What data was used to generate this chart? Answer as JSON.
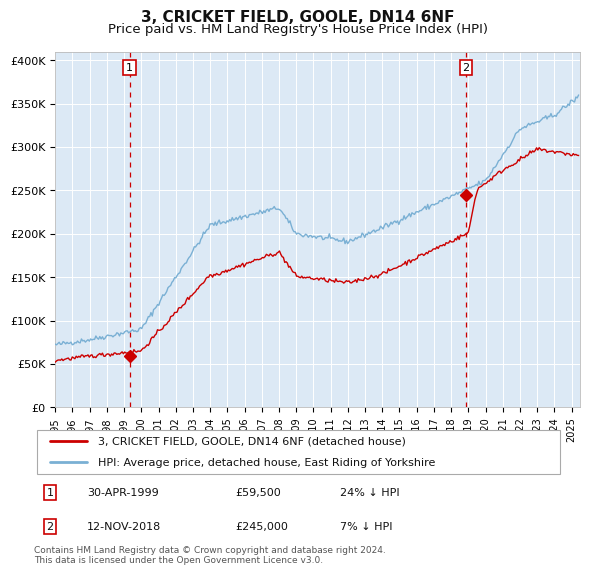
{
  "title": "3, CRICKET FIELD, GOOLE, DN14 6NF",
  "subtitle": "Price paid vs. HM Land Registry's House Price Index (HPI)",
  "title_fontsize": 11,
  "subtitle_fontsize": 9.5,
  "plot_bg_color": "#dce9f5",
  "fig_bg_color": "#ffffff",
  "xmin": 1995.0,
  "xmax": 2025.5,
  "ymin": 0,
  "ymax": 410000,
  "yticks": [
    0,
    50000,
    100000,
    150000,
    200000,
    250000,
    300000,
    350000,
    400000
  ],
  "ytick_labels": [
    "£0",
    "£50K",
    "£100K",
    "£150K",
    "£200K",
    "£250K",
    "£300K",
    "£350K",
    "£400K"
  ],
  "xtick_years": [
    1995,
    1996,
    1997,
    1998,
    1999,
    2000,
    2001,
    2002,
    2003,
    2004,
    2005,
    2006,
    2007,
    2008,
    2009,
    2010,
    2011,
    2012,
    2013,
    2014,
    2015,
    2016,
    2017,
    2018,
    2019,
    2020,
    2021,
    2022,
    2023,
    2024,
    2025
  ],
  "sale1_x": 1999.33,
  "sale1_y": 59500,
  "sale1_label": "1",
  "sale2_x": 2018.87,
  "sale2_y": 245000,
  "sale2_label": "2",
  "red_line_color": "#cc0000",
  "blue_line_color": "#7ab0d4",
  "marker_color": "#cc0000",
  "vline_color": "#cc0000",
  "legend1_text": "3, CRICKET FIELD, GOOLE, DN14 6NF (detached house)",
  "legend2_text": "HPI: Average price, detached house, East Riding of Yorkshire",
  "ann1_date": "30-APR-1999",
  "ann1_price": "£59,500",
  "ann1_hpi": "24% ↓ HPI",
  "ann2_date": "12-NOV-2018",
  "ann2_price": "£245,000",
  "ann2_hpi": "7% ↓ HPI",
  "footnote": "Contains HM Land Registry data © Crown copyright and database right 2024.\nThis data is licensed under the Open Government Licence v3.0."
}
